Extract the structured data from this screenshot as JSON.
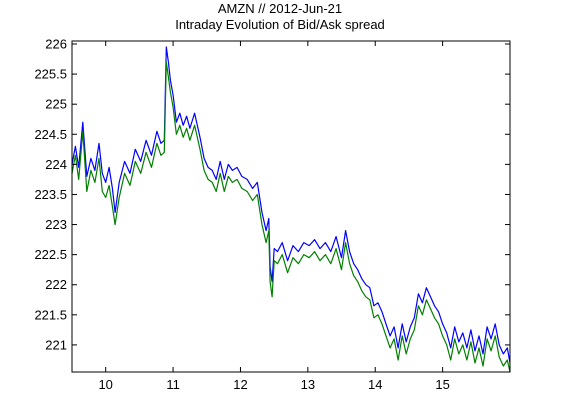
{
  "chart_data": {
    "type": "line",
    "title": "AMZN // 2012-Jun-21",
    "subtitle": "Intraday Evolution of Bid/Ask spread",
    "xlabel": "",
    "ylabel": "",
    "xlim": [
      9.5,
      16.0
    ],
    "ylim": [
      220.55,
      226.05
    ],
    "x_ticks": [
      10,
      11,
      12,
      13,
      14,
      15
    ],
    "y_ticks": [
      221,
      221.5,
      222,
      222.5,
      223,
      223.5,
      224,
      224.5,
      225,
      225.5,
      226
    ],
    "grid": false,
    "legend": "none",
    "x": [
      9.5,
      9.55,
      9.6,
      9.66,
      9.72,
      9.78,
      9.84,
      9.9,
      9.95,
      10.0,
      10.05,
      10.1,
      10.14,
      10.2,
      10.28,
      10.36,
      10.44,
      10.52,
      10.6,
      10.68,
      10.76,
      10.82,
      10.87,
      10.9,
      10.93,
      10.96,
      11.0,
      11.05,
      11.1,
      11.15,
      11.2,
      11.25,
      11.32,
      11.4,
      11.46,
      11.52,
      11.58,
      11.64,
      11.7,
      11.76,
      11.82,
      11.88,
      11.95,
      12.02,
      12.1,
      12.18,
      12.25,
      12.32,
      12.38,
      12.42,
      12.44,
      12.47,
      12.5,
      12.55,
      12.62,
      12.7,
      12.78,
      12.86,
      12.94,
      13.02,
      13.1,
      13.18,
      13.26,
      13.34,
      13.42,
      13.5,
      13.56,
      13.62,
      13.68,
      13.74,
      13.8,
      13.86,
      13.92,
      13.98,
      14.04,
      14.1,
      14.16,
      14.22,
      14.28,
      14.34,
      14.4,
      14.46,
      14.52,
      14.58,
      14.64,
      14.7,
      14.76,
      14.82,
      14.88,
      14.94,
      15.0,
      15.06,
      15.12,
      15.18,
      15.24,
      15.3,
      15.36,
      15.42,
      15.48,
      15.54,
      15.6,
      15.66,
      15.72,
      15.78,
      15.84,
      15.9,
      15.96,
      16.0
    ],
    "series": [
      {
        "color": "#0000ff",
        "values": [
          224.0,
          224.3,
          223.95,
          224.7,
          223.8,
          224.1,
          223.9,
          224.35,
          223.85,
          223.7,
          223.95,
          223.6,
          223.2,
          223.7,
          224.05,
          223.85,
          224.25,
          224.05,
          224.4,
          224.15,
          224.55,
          224.35,
          224.4,
          225.95,
          225.7,
          225.4,
          225.15,
          224.7,
          224.85,
          224.65,
          224.8,
          224.6,
          224.85,
          224.45,
          224.1,
          223.95,
          223.9,
          223.75,
          224.05,
          223.75,
          224.0,
          223.9,
          223.95,
          223.8,
          223.75,
          223.6,
          223.7,
          223.2,
          222.9,
          223.1,
          222.3,
          222.05,
          222.6,
          222.55,
          222.7,
          222.4,
          222.65,
          222.55,
          222.7,
          222.65,
          222.75,
          222.6,
          222.7,
          222.55,
          222.8,
          222.45,
          222.9,
          222.55,
          222.35,
          222.25,
          222.1,
          222.0,
          221.95,
          221.65,
          221.7,
          221.55,
          221.35,
          221.15,
          221.3,
          220.95,
          221.35,
          221.05,
          221.3,
          221.45,
          221.85,
          221.7,
          221.95,
          221.8,
          221.65,
          221.55,
          221.35,
          221.2,
          220.95,
          221.3,
          221.05,
          221.2,
          220.95,
          221.25,
          220.9,
          221.15,
          220.85,
          221.3,
          221.1,
          221.35,
          221.0,
          220.85,
          220.95,
          220.7
        ]
      },
      {
        "color": "#008000",
        "values": [
          223.85,
          224.15,
          223.75,
          224.55,
          223.55,
          223.9,
          223.7,
          224.1,
          223.55,
          223.45,
          223.65,
          223.3,
          223.0,
          223.45,
          223.85,
          223.65,
          224.05,
          223.85,
          224.2,
          223.95,
          224.35,
          224.15,
          224.2,
          225.7,
          225.45,
          225.2,
          224.95,
          224.5,
          224.65,
          224.45,
          224.6,
          224.4,
          224.65,
          224.25,
          223.9,
          223.75,
          223.7,
          223.55,
          223.85,
          223.55,
          223.8,
          223.7,
          223.75,
          223.6,
          223.55,
          223.4,
          223.5,
          223.0,
          222.7,
          222.9,
          222.05,
          221.8,
          222.4,
          222.35,
          222.5,
          222.2,
          222.45,
          222.35,
          222.5,
          222.45,
          222.55,
          222.4,
          222.5,
          222.35,
          222.6,
          222.25,
          222.7,
          222.35,
          222.15,
          222.05,
          221.9,
          221.8,
          221.75,
          221.45,
          221.5,
          221.35,
          221.15,
          220.95,
          221.1,
          220.75,
          221.15,
          220.85,
          221.1,
          221.25,
          221.65,
          221.5,
          221.75,
          221.6,
          221.45,
          221.35,
          221.15,
          221.0,
          220.75,
          221.1,
          220.85,
          221.0,
          220.75,
          221.05,
          220.7,
          220.95,
          220.65,
          221.1,
          220.9,
          221.15,
          220.8,
          220.65,
          220.75,
          220.55
        ]
      }
    ]
  }
}
